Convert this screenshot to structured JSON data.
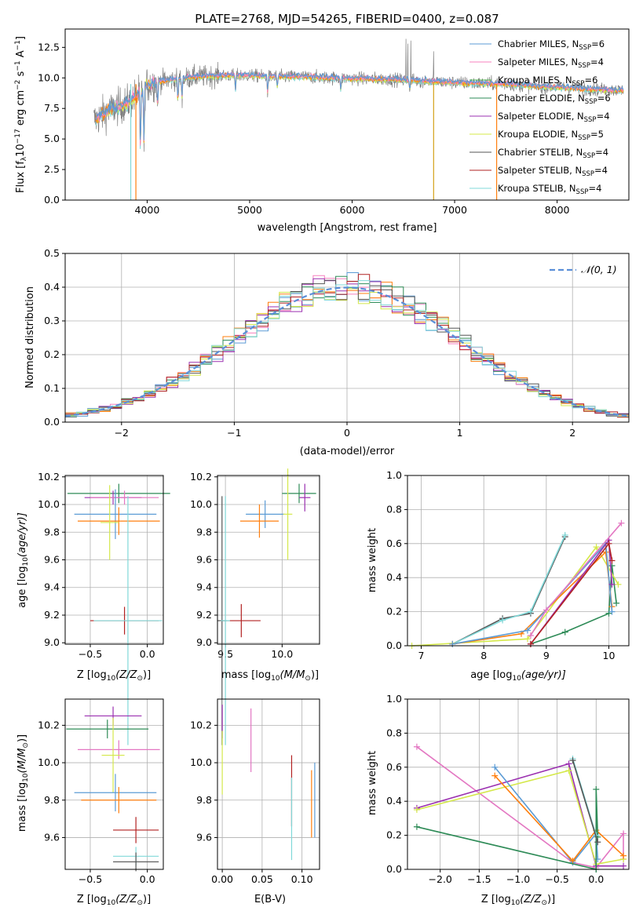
{
  "colors": {
    "chabrier_miles": "#5b9bd5",
    "salpeter_miles": "#f781bf",
    "kroupa_miles": "#4daf4a",
    "chabrier_elodie": "#2e8b57",
    "salpeter_elodie": "#9b30b0",
    "kroupa_elodie": "#d4e84a",
    "chabrier_stelib": "#555555",
    "salpeter_stelib": "#b22222",
    "kroupa_stelib": "#80d8d8",
    "data": "#808080",
    "normal_fit": "#5b8fd8",
    "orange": "#ff7f0e",
    "pink": "#e377c2",
    "grid": "#b0b0b0"
  },
  "chart_data": [
    {
      "id": "spectrum",
      "type": "line",
      "title": "PLATE=2768, MJD=54265, FIBERID=0400, z=0.087",
      "xlabel": "wavelength [Angstrom, rest frame]",
      "ylabel_main": "Flux [f",
      "ylabel_sub": "λ",
      "ylabel_rest": "10",
      "ylabel_exp1": "−17",
      "ylabel_units": " erg cm",
      "ylabel_exp2": "−2",
      "ylabel_s": " s",
      "ylabel_exp3": "−1",
      "ylabel_A": " A",
      "ylabel_exp4": "−1",
      "ylabel_end": "]",
      "xlim": [
        3200,
        8700
      ],
      "ylim": [
        0,
        14
      ],
      "xticks": [
        "4000",
        "5000",
        "6000",
        "7000",
        "8000"
      ],
      "yticks": [
        "0.0",
        "2.5",
        "5.0",
        "7.5",
        "10.0",
        "12.5"
      ],
      "legend": [
        {
          "label": "Chabrier MILES, N",
          "sub": "SSP",
          "n": "=6",
          "color": "#5b9bd5"
        },
        {
          "label": "Salpeter MILES, N",
          "sub": "SSP",
          "n": "=4",
          "color": "#f781bf"
        },
        {
          "label": "Kroupa MILES, N",
          "sub": "SSP",
          "n": "=6",
          "color": "#4daf4a"
        },
        {
          "label": "Chabrier ELODIE, N",
          "sub": "SSP",
          "n": "=6",
          "color": "#2e8b57"
        },
        {
          "label": "Salpeter ELODIE, N",
          "sub": "SSP",
          "n": "=4",
          "color": "#9b30b0"
        },
        {
          "label": "Kroupa ELODIE, N",
          "sub": "SSP",
          "n": "=5",
          "color": "#d4e84a"
        },
        {
          "label": "Chabrier STELIB, N",
          "sub": "SSP",
          "n": "=4",
          "color": "#555555"
        },
        {
          "label": "Salpeter STELIB, N",
          "sub": "SSP",
          "n": "=4",
          "color": "#b22222"
        },
        {
          "label": "Kroupa STELIB, N",
          "sub": "SSP",
          "n": "=4",
          "color": "#80d8d8"
        }
      ],
      "continuum": [
        [
          3500,
          6.6
        ],
        [
          3600,
          7.2
        ],
        [
          3700,
          7.6
        ],
        [
          3800,
          7.9
        ],
        [
          3900,
          8.6
        ],
        [
          4000,
          9.4
        ],
        [
          4100,
          9.7
        ],
        [
          4300,
          9.9
        ],
        [
          4500,
          10.1
        ],
        [
          4800,
          10.2
        ],
        [
          5000,
          10.2
        ],
        [
          5200,
          10.1
        ],
        [
          5500,
          10.1
        ],
        [
          5800,
          10.0
        ],
        [
          6000,
          9.95
        ],
        [
          6300,
          9.9
        ],
        [
          6600,
          9.8
        ],
        [
          6900,
          9.65
        ],
        [
          7200,
          9.55
        ],
        [
          7500,
          9.5
        ],
        [
          7800,
          9.3
        ],
        [
          8100,
          9.2
        ],
        [
          8400,
          9.05
        ],
        [
          8600,
          9.0
        ]
      ]
    },
    {
      "id": "residuals",
      "type": "histogram",
      "xlabel": "(data-model)/error",
      "ylabel": "Normed distribution",
      "xlim": [
        -2.5,
        2.5
      ],
      "ylim": [
        0,
        0.5
      ],
      "xticks": [
        "−2",
        "−1",
        "0",
        "1",
        "2"
      ],
      "yticks": [
        "0.0",
        "0.1",
        "0.2",
        "0.3",
        "0.4",
        "0.5"
      ],
      "legend_label": "𝒩(0, 1)",
      "bin_width": 0.1
    },
    {
      "id": "age_vs_Z",
      "type": "errorbar",
      "xlabel": "Z [log",
      "xlabel_sub": "10",
      "xlabel_rest": "(Z/Z",
      "xlabel_sun": "⊙",
      "xlabel_end": ")]",
      "ylabel": "age  [log",
      "ylabel_sub": "10",
      "ylabel_rest": "(age/yr)]",
      "xlim": [
        -0.72,
        0.14
      ],
      "ylim": [
        8.99,
        10.21
      ],
      "xticks": [
        "−0.5",
        "0.0"
      ],
      "yticks": [
        "9.0",
        "9.2",
        "9.4",
        "9.6",
        "9.8",
        "10.0",
        "10.2"
      ],
      "points": [
        {
          "x": -0.25,
          "y": 10.08,
          "xerr": 0.45,
          "yerr": 0.07,
          "color": "#2e8b57"
        },
        {
          "x": -0.3,
          "y": 10.05,
          "xerr": 0.25,
          "yerr": 0.05,
          "color": "#9b30b0"
        },
        {
          "x": -0.2,
          "y": 10.05,
          "xerr": 0.3,
          "yerr": 0.05,
          "color": "#e377c2"
        },
        {
          "x": -0.28,
          "y": 9.93,
          "xerr": 0.36,
          "yerr": 0.18,
          "color": "#5b9bd5"
        },
        {
          "x": -0.25,
          "y": 9.88,
          "xerr": 0.36,
          "yerr": 0.1,
          "color": "#ff7f0e"
        },
        {
          "x": -0.33,
          "y": 9.87,
          "xerr": 0.08,
          "yerr": 0.27,
          "color": "#d4e84a"
        },
        {
          "x": -0.2,
          "y": 9.16,
          "xerr": 0.3,
          "yerr": 0.1,
          "color": "#b22222"
        },
        {
          "x": -0.17,
          "y": 9.16,
          "xerr": 0.3,
          "yerr": 0.9,
          "color": "#80d8d8"
        }
      ]
    },
    {
      "id": "age_vs_mass",
      "type": "errorbar",
      "xlabel": "mass [log",
      "xlabel_sub": "10",
      "xlabel_rest": "(M/M",
      "xlabel_sun": "⊙",
      "xlabel_end": ")]",
      "xlim": [
        9.43,
        10.33
      ],
      "ylim": [
        8.99,
        10.21
      ],
      "xticks": [
        "9.5",
        "10.0"
      ],
      "yticks": [
        "9.0",
        "9.2",
        "9.4",
        "9.6",
        "9.8",
        "10.0",
        "10.2"
      ],
      "points": [
        {
          "x": 10.15,
          "y": 10.08,
          "xerr": 0.15,
          "yerr": 0.07,
          "color": "#2e8b57"
        },
        {
          "x": 10.2,
          "y": 10.05,
          "xerr": 0.05,
          "yerr": 0.1,
          "color": "#9b30b0"
        },
        {
          "x": 9.85,
          "y": 9.93,
          "xerr": 0.17,
          "yerr": 0.1,
          "color": "#5b9bd5"
        },
        {
          "x": 9.8,
          "y": 9.88,
          "xerr": 0.17,
          "yerr": 0.12,
          "color": "#ff7f0e"
        },
        {
          "x": 10.05,
          "y": 9.93,
          "xerr": 0.04,
          "yerr": 0.33,
          "color": "#d4e84a"
        },
        {
          "x": 9.64,
          "y": 9.16,
          "xerr": 0.17,
          "yerr": 0.12,
          "color": "#b22222"
        },
        {
          "x": 9.47,
          "y": 9.16,
          "xerr": 0.04,
          "yerr": 0.9,
          "color": "#555555"
        },
        {
          "x": 9.5,
          "y": 9.16,
          "xerr": 0.04,
          "yerr": 0.9,
          "color": "#80d8d8"
        }
      ]
    },
    {
      "id": "massweight_vs_age",
      "type": "line",
      "xlabel": "age  [log",
      "xlabel_sub": "10",
      "xlabel_rest": "(age/yr)]",
      "ylabel": "mass weight",
      "xlim": [
        6.78,
        10.32
      ],
      "ylim": [
        0,
        1
      ],
      "xticks": [
        "7",
        "8",
        "9",
        "10"
      ],
      "yticks": [
        "0.0",
        "0.2",
        "0.4",
        "0.6",
        "0.8",
        "1.0"
      ],
      "series": [
        {
          "color": "#555555",
          "x": [
            7.5,
            8.3,
            8.75,
            9.3
          ],
          "y": [
            0.01,
            0.16,
            0.19,
            0.64
          ]
        },
        {
          "color": "#80d8d8",
          "x": [
            7.5,
            8.3,
            8.75,
            9.3
          ],
          "y": [
            0.01,
            0.15,
            0.2,
            0.65
          ]
        },
        {
          "color": "#2e8b57",
          "x": [
            8.75,
            9.3,
            10.0,
            10.05,
            10.12
          ],
          "y": [
            0.01,
            0.08,
            0.19,
            0.47,
            0.25
          ]
        },
        {
          "color": "#d4e84a",
          "x": [
            6.85,
            8.7,
            9.8,
            10.15
          ],
          "y": [
            0.0,
            0.04,
            0.58,
            0.36
          ]
        },
        {
          "color": "#ff7f0e",
          "x": [
            7.5,
            8.6,
            9.95,
            10.05
          ],
          "y": [
            0.01,
            0.07,
            0.55,
            0.23
          ]
        },
        {
          "color": "#5b9bd5",
          "x": [
            7.5,
            8.7,
            9.95,
            10.05
          ],
          "y": [
            0.01,
            0.09,
            0.6,
            0.2
          ]
        },
        {
          "color": "#9b30b0",
          "x": [
            8.75,
            10.0,
            10.05
          ],
          "y": [
            0.01,
            0.62,
            0.36
          ]
        },
        {
          "color": "#e377c2",
          "x": [
            8.75,
            9.0,
            10.2
          ],
          "y": [
            0.06,
            0.21,
            0.72
          ]
        },
        {
          "color": "#b22222",
          "x": [
            8.75,
            10.0,
            10.05
          ],
          "y": [
            0.01,
            0.6,
            0.5
          ]
        }
      ]
    },
    {
      "id": "mass_vs_Z",
      "type": "errorbar",
      "xlabel": "Z [log",
      "xlabel_sub": "10",
      "xlabel_rest": "(Z/Z",
      "xlabel_sun": "⊙",
      "xlabel_end": ")]",
      "ylabel": "mass [log",
      "ylabel_sub": "10",
      "ylabel_rest": "(M/M",
      "ylabel_sun": "⊙",
      "ylabel_end": ")]",
      "xlim": [
        -0.72,
        0.14
      ],
      "ylim": [
        9.43,
        10.34
      ],
      "xticks": [
        "−0.5",
        "0.0"
      ],
      "yticks": [
        "9.6",
        "9.8",
        "10.0",
        "10.2"
      ],
      "points": [
        {
          "x": -0.3,
          "y": 10.25,
          "xerr": 0.25,
          "yerr": 0.05,
          "color": "#9b30b0"
        },
        {
          "x": -0.35,
          "y": 10.18,
          "xerr": 0.36,
          "yerr": 0.05,
          "color": "#2e8b57"
        },
        {
          "x": -0.25,
          "y": 10.07,
          "xerr": 0.36,
          "yerr": 0.05,
          "color": "#e377c2"
        },
        {
          "x": -0.3,
          "y": 10.04,
          "xerr": 0.1,
          "yerr": 0.2,
          "color": "#d4e84a"
        },
        {
          "x": -0.28,
          "y": 9.84,
          "xerr": 0.36,
          "yerr": 0.1,
          "color": "#5b9bd5"
        },
        {
          "x": -0.25,
          "y": 9.8,
          "xerr": 0.33,
          "yerr": 0.07,
          "color": "#ff7f0e"
        },
        {
          "x": -0.1,
          "y": 9.64,
          "xerr": 0.2,
          "yerr": 0.07,
          "color": "#b22222"
        },
        {
          "x": -0.1,
          "y": 9.5,
          "xerr": 0.2,
          "yerr": 0.05,
          "color": "#80d8d8"
        },
        {
          "x": -0.1,
          "y": 9.47,
          "xerr": 0.2,
          "yerr": 0.05,
          "color": "#555555"
        }
      ]
    },
    {
      "id": "mass_vs_ebv",
      "type": "errorbar",
      "xlabel": "E(B-V)",
      "xlim": [
        -0.006,
        0.122
      ],
      "ylim": [
        9.43,
        10.34
      ],
      "xticks": [
        "0.00",
        "0.05",
        "0.10"
      ],
      "yticks": [
        "9.6",
        "9.8",
        "10.0",
        "10.2"
      ],
      "points": [
        {
          "x": 0.0,
          "y": 10.22,
          "xerr": 0.0,
          "yerr": 0.09,
          "color": "#9b30b0"
        },
        {
          "x": 0.0,
          "y": 10.0,
          "xerr": 0.0,
          "yerr": 0.17,
          "color": "#d4e84a"
        },
        {
          "x": 0.036,
          "y": 10.12,
          "xerr": 0.0,
          "yerr": 0.17,
          "color": "#e377c2"
        },
        {
          "x": 0.087,
          "y": 9.85,
          "xerr": 0.0,
          "yerr": 0.19,
          "color": "#b22222"
        },
        {
          "x": 0.087,
          "y": 9.7,
          "xerr": 0.0,
          "yerr": 0.22,
          "color": "#80d8d8"
        },
        {
          "x": 0.112,
          "y": 9.78,
          "xerr": 0.0,
          "yerr": 0.18,
          "color": "#ff7f0e"
        },
        {
          "x": 0.116,
          "y": 9.8,
          "xerr": 0.0,
          "yerr": 0.2,
          "color": "#5b9bd5"
        }
      ]
    },
    {
      "id": "massweight_vs_Z",
      "type": "line",
      "xlabel": "Z [log",
      "xlabel_sub": "10",
      "xlabel_rest": "(Z/Z",
      "xlabel_sun": "⊙",
      "xlabel_end": ")]",
      "ylabel": "mass weight",
      "xlim": [
        -2.42,
        0.42
      ],
      "ylim": [
        0,
        1
      ],
      "xticks": [
        "−2.0",
        "−1.5",
        "−1.0",
        "−0.5",
        "0.0"
      ],
      "yticks": [
        "0.0",
        "0.2",
        "0.4",
        "0.6",
        "0.8",
        "1.0"
      ],
      "series": [
        {
          "color": "#e377c2",
          "x": [
            -2.3,
            -0.3,
            0.0,
            0.35,
            0.35
          ],
          "y": [
            0.72,
            0.04,
            0.01,
            0.21,
            0.06
          ]
        },
        {
          "color": "#9b30b0",
          "x": [
            -2.3,
            -0.35,
            0.0,
            0.35
          ],
          "y": [
            0.36,
            0.62,
            0.02,
            0.02
          ]
        },
        {
          "color": "#d4e84a",
          "x": [
            -2.3,
            -0.35,
            0.0,
            0.35
          ],
          "y": [
            0.35,
            0.58,
            0.03,
            0.06
          ]
        },
        {
          "color": "#5b9bd5",
          "x": [
            -1.3,
            -0.3,
            0.0,
            0.02
          ],
          "y": [
            0.6,
            0.04,
            0.21,
            0.06
          ]
        },
        {
          "color": "#ff7f0e",
          "x": [
            -1.3,
            -0.3,
            0.0,
            0.35
          ],
          "y": [
            0.55,
            0.05,
            0.23,
            0.08
          ]
        },
        {
          "color": "#2e8b57",
          "x": [
            -2.3,
            0.0,
            0.0,
            0.02
          ],
          "y": [
            0.25,
            0.0,
            0.47,
            0.19
          ]
        },
        {
          "color": "#80d8d8",
          "x": [
            -0.3,
            0.0
          ],
          "y": [
            0.65,
            0.2
          ]
        },
        {
          "color": "#555555",
          "x": [
            -0.3,
            0.02
          ],
          "y": [
            0.64,
            0.16
          ]
        }
      ]
    }
  ]
}
